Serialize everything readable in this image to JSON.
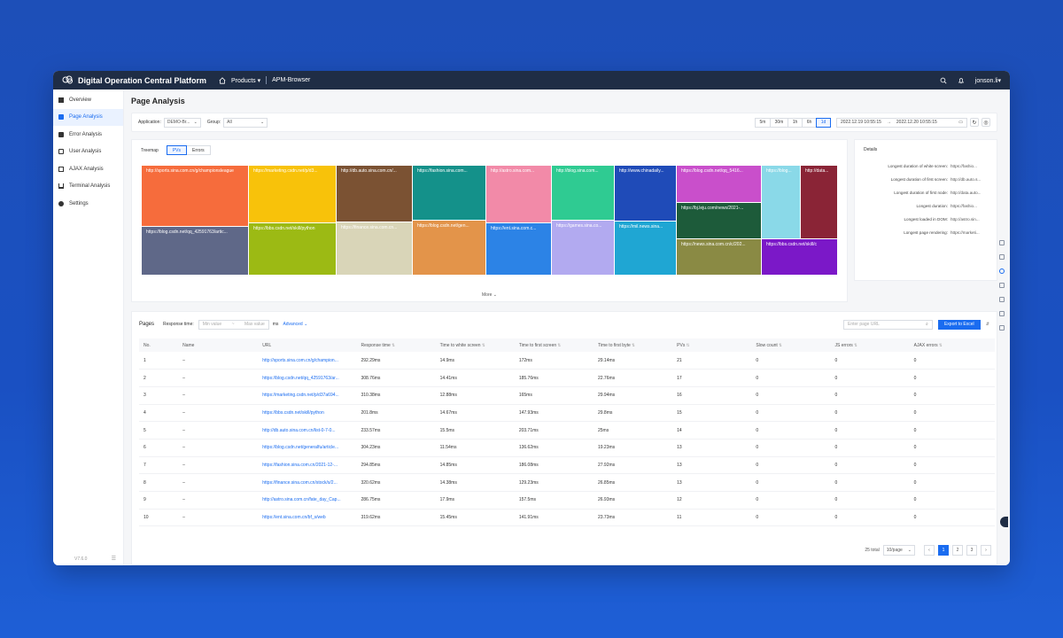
{
  "app": {
    "title": "Digital Operation Central Platform",
    "products_label": "Products",
    "breadcrumb": "APM-Browser",
    "user": "jonson.li"
  },
  "sidebar": {
    "items": [
      {
        "label": "Overview",
        "icon": "grid-icon"
      },
      {
        "label": "Page Analysis",
        "icon": "page-icon"
      },
      {
        "label": "Error Analysis",
        "icon": "error-icon"
      },
      {
        "label": "User Analysis",
        "icon": "user-icon"
      },
      {
        "label": "AJAX Analysis",
        "icon": "ajax-icon"
      },
      {
        "label": "Terminal Analysis",
        "icon": "terminal-icon"
      },
      {
        "label": "Settings",
        "icon": "gear-icon"
      }
    ],
    "active_index": 1,
    "version": "V7.6.0"
  },
  "page": {
    "title": "Page Analysis"
  },
  "filters": {
    "application_label": "Application:",
    "application_value": "DEMO-Br...",
    "group_label": "Group:",
    "group_value": "All",
    "time_buttons": [
      "5m",
      "30m",
      "1h",
      "6h",
      "1d"
    ],
    "active_time": "1d",
    "date_start": "2022.12.19 10:55:15",
    "date_end": "2022.12.20 10:55:15"
  },
  "treemap": {
    "label": "Treemap",
    "tabs": [
      "PVs",
      "Errors"
    ],
    "active_tab": "PVs",
    "more_label": "More",
    "tiles": [
      {
        "label": "http://sports.sina.com.cn/g/championsleague",
        "color": "#f66c3c"
      },
      {
        "label": "https://blog.csdn.net/qq_42591763/artic...",
        "color": "#5f6888"
      },
      {
        "label": "https://marketing.csdn.net/p/d3...",
        "color": "#f8c20a"
      },
      {
        "label": "https://bbs.csdn.net/skill/python",
        "color": "#9cba14"
      },
      {
        "label": "http://db.auto.sina.com.cn/...",
        "color": "#7b5233"
      },
      {
        "label": "https://finance.sina.com.cn...",
        "color": "#d9d5b8"
      },
      {
        "label": "https://fashion.sina.com...",
        "color": "#14918a"
      },
      {
        "label": "https://blog.csdn.net/gen...",
        "color": "#e3944a"
      },
      {
        "label": "http://astro.sina.com...",
        "color": "#f28aa8"
      },
      {
        "label": "https://ent.sina.com.c...",
        "color": "#2c83e6"
      },
      {
        "label": "http://blog.sina.com...",
        "color": "#2fcb92"
      },
      {
        "label": "https://games.sina.co...",
        "color": "#b2aaf0"
      },
      {
        "label": "http://www.chinadaily...",
        "color": "#1f4bb8"
      },
      {
        "label": "https://mil.news.sina...",
        "color": "#1fa6d3"
      },
      {
        "label": "https://blog.csdn.net/qq_5416...",
        "color": "#c94fcb"
      },
      {
        "label": "https://bj.leju.com/news/2021-...",
        "color": "#1d5b3a"
      },
      {
        "label": "https://news.sina.com.cn/c/202...",
        "color": "#8a8a44"
      },
      {
        "label": "https://blog...",
        "color": "#8ad9e8"
      },
      {
        "label": "https://bbs.csdn.net/skill/c",
        "color": "#7b18c8"
      },
      {
        "label": "http://data...",
        "color": "#8a2436"
      }
    ]
  },
  "details": {
    "title": "Details",
    "rows": [
      {
        "key": "Longest duration of white screen:",
        "value": "https://fashio..."
      },
      {
        "key": "Longest duration of first screen:",
        "value": "http://db.auto.s..."
      },
      {
        "key": "Longest duration of first node:",
        "value": "http://data.auto..."
      },
      {
        "key": "Longest duration:",
        "value": "https://fashio..."
      },
      {
        "key": "Longest loaded in DOM:",
        "value": "http://astro.sin..."
      },
      {
        "key": "Longest page rendering:",
        "value": "https://marketi..."
      }
    ]
  },
  "pages": {
    "title": "Pages",
    "response_time_label": "Response time:",
    "min_placeholder": "Min value",
    "max_placeholder": "Max value",
    "unit": "ms",
    "advanced_label": "Advanced",
    "search_placeholder": "Enter page URL",
    "export_label": "Export to Excel",
    "columns": [
      "No.",
      "Name",
      "URL",
      "Response time",
      "Time to white screen",
      "Time to first screen",
      "Time to first byte",
      "PVs",
      "Slow count",
      "JS errors",
      "AJAX errors"
    ],
    "rows": [
      [
        "1",
        "–",
        "http://sports.sina.com.cn/g/champion...",
        "292.29ms",
        "14.9ms",
        "172ms",
        "29.14ms",
        "21",
        "0",
        "0",
        "0"
      ],
      [
        "2",
        "–",
        "https://blog.csdn.net/qq_42591763/ar...",
        "308.76ms",
        "14.41ms",
        "185.76ms",
        "22.76ms",
        "17",
        "0",
        "0",
        "0"
      ],
      [
        "3",
        "–",
        "https://marketing.csdn.net/p/d37a694...",
        "310.38ms",
        "12.88ms",
        "165ms",
        "29.94ms",
        "16",
        "0",
        "0",
        "0"
      ],
      [
        "4",
        "–",
        "https://bbs.csdn.net/skill/python",
        "201.8ms",
        "14.67ms",
        "147.93ms",
        "29.8ms",
        "15",
        "0",
        "0",
        "0"
      ],
      [
        "5",
        "–",
        "http://db.auto.sina.com.cn/list-0-7-0...",
        "233.57ms",
        "15.5ms",
        "203.71ms",
        "25ms",
        "14",
        "0",
        "0",
        "0"
      ],
      [
        "6",
        "–",
        "https://blog.csdn.net/generalfu/article...",
        "304.23ms",
        "11.54ms",
        "136.62ms",
        "19.23ms",
        "13",
        "0",
        "0",
        "0"
      ],
      [
        "7",
        "–",
        "https://fashion.sina.com.cn/2021-12-...",
        "294.85ms",
        "14.85ms",
        "186.08ms",
        "27.92ms",
        "13",
        "0",
        "0",
        "0"
      ],
      [
        "8",
        "–",
        "https://finance.sina.com.cn/stock/s/2...",
        "320.62ms",
        "14.38ms",
        "129.23ms",
        "26.85ms",
        "13",
        "0",
        "0",
        "0"
      ],
      [
        "9",
        "–",
        "http://astro.sina.com.cn/fate_day_Cap...",
        "286.75ms",
        "17.9ms",
        "157.5ms",
        "26.93ms",
        "12",
        "0",
        "0",
        "0"
      ],
      [
        "10",
        "–",
        "https://ent.sina.com.cn/bf_s/web",
        "319.62ms",
        "15.45ms",
        "141.91ms",
        "23.73ms",
        "11",
        "0",
        "0",
        "0"
      ]
    ],
    "total": "25 total",
    "page_size": "10/page",
    "page_numbers": [
      "1",
      "2",
      "3"
    ],
    "current_page": "1"
  }
}
